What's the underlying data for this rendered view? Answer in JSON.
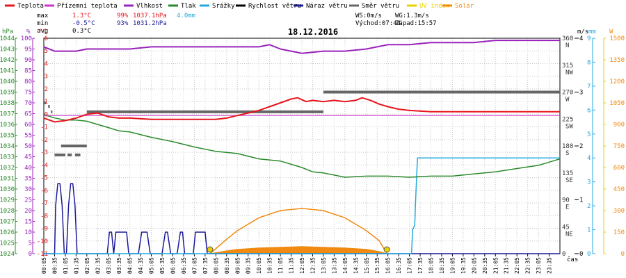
{
  "legend": [
    {
      "name": "Teplota",
      "color": "#e8141c"
    },
    {
      "name": "Přízemní teplota",
      "color": "#cc33cc"
    },
    {
      "name": "Vlhkost",
      "color": "#9922bb"
    },
    {
      "name": "Tlak",
      "color": "#2a8a2a"
    },
    {
      "name": "Srážky",
      "color": "#22aadd"
    },
    {
      "name": "Rychlost větru",
      "color": "#000000"
    },
    {
      "name": "Náraz větru",
      "color": "#1a1a99"
    },
    {
      "name": "Směr větru",
      "color": "#666666"
    },
    {
      "name": "UV index",
      "color": "#e8d000"
    },
    {
      "name": "Solar",
      "color": "#f08a10"
    }
  ],
  "stats": {
    "max": {
      "label": "max",
      "temp": "1.3°C",
      "hum": "99%",
      "press": "1037.1hPa",
      "rain": "4.0mm"
    },
    "min": {
      "label": "min",
      "temp": "-0.5°C",
      "hum": "93%",
      "press": "1031.2hPa"
    },
    "avg": {
      "label": "avg",
      "temp": "0.3°C"
    }
  },
  "wind_info": {
    "ws": "WS:0m/s",
    "wg": "WG:1.3m/s",
    "sunrise": "Východ:07:44",
    "sunset": "Západ:15:57"
  },
  "date": "18.12.2016",
  "colors": {
    "temp": "#e8141c",
    "ground": "#cc33cc",
    "hum": "#9922bb",
    "press": "#2a8a2a",
    "rain": "#22aadd",
    "gust": "#1a1a99",
    "dir": "#666666",
    "uv": "#e8d000",
    "solar": "#f08a10"
  },
  "chart_data": {
    "type": "line",
    "title": "18.12.2016",
    "xlabel": "čas",
    "x_ticks": [
      "00:05",
      "00:35",
      "01:05",
      "01:35",
      "02:05",
      "02:35",
      "03:05",
      "03:35",
      "04:05",
      "04:35",
      "05:05",
      "05:35",
      "06:05",
      "06:35",
      "07:05",
      "07:35",
      "08:05",
      "08:35",
      "09:05",
      "09:35",
      "10:05",
      "10:35",
      "11:05",
      "11:35",
      "12:05",
      "12:35",
      "13:05",
      "13:35",
      "14:05",
      "14:35",
      "15:05",
      "15:35",
      "16:05",
      "16:35",
      "17:05",
      "17:35",
      "18:05",
      "18:35",
      "19:05",
      "19:35",
      "20:05",
      "20:35",
      "21:05",
      "21:35",
      "22:05",
      "22:35",
      "23:05",
      "23:35"
    ],
    "xlim_hours": [
      0,
      24
    ],
    "axes": {
      "pressure": {
        "unit": "hPa",
        "range": [
          1024,
          1044
        ],
        "ticks": [
          1024,
          1025,
          1026,
          1027,
          1028,
          1029,
          1030,
          1031,
          1032,
          1033,
          1034,
          1035,
          1036,
          1037,
          1038,
          1039,
          1040,
          1041,
          1042,
          1043,
          1044
        ]
      },
      "humidity": {
        "unit": "%",
        "range": [
          0,
          100
        ],
        "ticks": [
          0,
          5,
          10,
          15,
          20,
          25,
          30,
          35,
          40,
          45,
          50,
          55,
          60,
          65,
          70,
          75,
          80,
          85,
          90,
          95,
          100
        ]
      },
      "temperature": {
        "unit": "°C",
        "range": [
          -11,
          6
        ],
        "ticks": [
          -11,
          -10,
          -9,
          -8,
          -7,
          -6,
          -5,
          -4,
          -3,
          -2,
          -1,
          0,
          1,
          2,
          3,
          4,
          5,
          6
        ]
      },
      "direction": {
        "unit": "",
        "range": [
          0,
          360
        ],
        "ticks": [
          {
            "v": 360,
            "l": "360",
            "d": "N"
          },
          {
            "v": 315,
            "l": "315",
            "d": "NW"
          },
          {
            "v": 270,
            "l": "270",
            "d": "W"
          },
          {
            "v": 225,
            "l": "225",
            "d": "SW"
          },
          {
            "v": 180,
            "l": "180",
            "d": "S"
          },
          {
            "v": 135,
            "l": "135",
            "d": "SE"
          },
          {
            "v": 90,
            "l": "90",
            "d": "E"
          },
          {
            "v": 45,
            "l": "45",
            "d": "NE"
          },
          {
            "v": 0,
            "l": "0",
            "d": ""
          }
        ]
      },
      "wind": {
        "unit": "m/s",
        "range": [
          0,
          4
        ],
        "ticks": [
          0,
          1,
          2,
          3,
          4
        ]
      },
      "rain": {
        "unit": "mm",
        "range": [
          0,
          9
        ],
        "ticks": [
          0,
          1,
          2,
          3,
          4,
          5,
          6,
          7,
          8,
          9
        ]
      },
      "solar": {
        "unit": "W",
        "range": [
          0,
          1500
        ],
        "ticks": [
          0,
          150,
          300,
          450,
          600,
          750,
          900,
          1050,
          1200,
          1350,
          1500
        ]
      }
    },
    "series": [
      {
        "name": "Teplota",
        "axis": "temperature",
        "x": [
          0,
          0.5,
          1,
          1.5,
          2,
          2.5,
          3,
          3.5,
          4,
          5,
          6,
          7,
          8,
          8.5,
          9,
          9.5,
          10,
          10.5,
          11,
          11.5,
          11.8,
          12.2,
          12.5,
          13,
          13.5,
          14,
          14.5,
          14.8,
          15.2,
          15.6,
          16,
          16.5,
          17,
          18,
          19,
          20,
          21,
          22,
          23,
          24
        ],
        "y": [
          -0.3,
          -0.6,
          -0.5,
          -0.3,
          0.0,
          0.1,
          -0.2,
          -0.3,
          -0.3,
          -0.4,
          -0.4,
          -0.4,
          -0.4,
          -0.3,
          -0.1,
          0.1,
          0.3,
          0.6,
          0.9,
          1.2,
          1.3,
          1.0,
          1.1,
          1.0,
          1.1,
          1.0,
          1.1,
          1.3,
          1.1,
          0.8,
          0.6,
          0.4,
          0.3,
          0.2,
          0.2,
          0.2,
          0.2,
          0.2,
          0.2,
          0.2
        ]
      },
      {
        "name": "Přízemní teplota",
        "axis": "temperature",
        "x": [
          0,
          24
        ],
        "y": [
          -0.1,
          -0.1
        ]
      },
      {
        "name": "Vlhkost",
        "axis": "humidity",
        "x": [
          0,
          0.5,
          1,
          1.5,
          2,
          2.5,
          3,
          4,
          5,
          6,
          7,
          8,
          9,
          10,
          10.5,
          11,
          11.5,
          12,
          13,
          14,
          15,
          15.5,
          16,
          17,
          18,
          19,
          20,
          21,
          22,
          23,
          24
        ],
        "y": [
          96,
          94,
          94,
          94,
          95,
          95,
          95,
          95,
          96,
          96,
          96,
          96,
          96,
          96,
          97,
          95,
          94,
          93,
          94,
          94,
          95,
          96,
          97,
          97,
          98,
          98,
          98,
          99,
          99,
          99,
          99
        ]
      },
      {
        "name": "Tlak",
        "axis": "pressure",
        "x": [
          0,
          0.5,
          1,
          1.5,
          2,
          2.5,
          3,
          3.5,
          4,
          5,
          6,
          7,
          8,
          9,
          10,
          11,
          12,
          12.5,
          13,
          13.5,
          14,
          15,
          16,
          17,
          18,
          19,
          20,
          21,
          22,
          23,
          23.5,
          24
        ],
        "y": [
          1036.9,
          1036.6,
          1036.4,
          1036.4,
          1036.3,
          1036.0,
          1035.7,
          1035.4,
          1035.3,
          1034.8,
          1034.4,
          1033.9,
          1033.5,
          1033.3,
          1032.8,
          1032.6,
          1032.0,
          1031.6,
          1031.5,
          1031.3,
          1031.1,
          1031.2,
          1031.2,
          1031.1,
          1031.2,
          1031.2,
          1031.4,
          1031.6,
          1031.9,
          1032.2,
          1032.5,
          1032.8
        ]
      },
      {
        "name": "Srážky",
        "axis": "rain",
        "x": [
          0,
          17.1,
          17.15,
          17.25,
          17.28,
          17.35,
          17.38,
          24
        ],
        "y": [
          0,
          0,
          1.0,
          1.2,
          2.0,
          3.5,
          4.0,
          4.0
        ]
      },
      {
        "name": "Náraz větru",
        "axis": "wind",
        "x": [
          0,
          0.5,
          0.55,
          0.65,
          0.75,
          0.85,
          0.95,
          1.05,
          1.15,
          1.25,
          1.35,
          1.45,
          1.55,
          1.65,
          1.75,
          1.85,
          1.95,
          2.05,
          2.5,
          2.95,
          3.05,
          3.15,
          3.25,
          3.35,
          3.5,
          3.7,
          3.85,
          3.95,
          4.4,
          4.55,
          4.65,
          4.8,
          4.95,
          5.05,
          5.5,
          5.65,
          5.75,
          5.9,
          6.2,
          6.35,
          6.45,
          6.55,
          6.95,
          7.05,
          7.15,
          7.35,
          7.5,
          7.6,
          24
        ],
        "y": [
          0,
          0,
          0.9,
          1.3,
          1.3,
          0.9,
          0,
          0,
          0.9,
          1.3,
          1.3,
          0.9,
          0,
          0,
          0,
          0,
          0,
          0,
          0,
          0,
          0.4,
          0.4,
          0,
          0.4,
          0.4,
          0.4,
          0.4,
          0,
          0,
          0.4,
          0.4,
          0.4,
          0,
          0,
          0,
          0.4,
          0.4,
          0,
          0,
          0.4,
          0.4,
          0,
          0,
          0.4,
          0.4,
          0.4,
          0.4,
          0,
          0
        ]
      },
      {
        "name": "Směr větru",
        "axis": "direction",
        "segments": [
          [
            0.0,
            0.1,
            252
          ],
          [
            0.2,
            0.28,
            246
          ],
          [
            0.33,
            0.4,
            237
          ],
          [
            0.5,
            1.0,
            165
          ],
          [
            1.1,
            1.3,
            165
          ],
          [
            1.45,
            1.7,
            165
          ],
          [
            0.8,
            2.0,
            180
          ],
          [
            2.0,
            13.0,
            237
          ],
          [
            13.0,
            24.0,
            270
          ]
        ]
      },
      {
        "name": "Solar",
        "axis": "solar",
        "x": [
          7.73,
          8.5,
          9,
          10,
          11,
          12,
          13,
          14,
          15,
          15.6,
          15.95
        ],
        "y": [
          0,
          100,
          160,
          250,
          300,
          315,
          300,
          250,
          160,
          90,
          0
        ]
      },
      {
        "name": "Solar",
        "axis": "solar",
        "x": [
          7.73,
          8.5,
          9,
          10,
          11,
          12,
          13,
          14,
          15,
          15.6,
          15.95
        ],
        "y": [
          0,
          20,
          30,
          40,
          45,
          50,
          45,
          40,
          30,
          15,
          0
        ]
      },
      {
        "name": "UV index",
        "markers": [
          7.73,
          15.95
        ]
      }
    ],
    "grid": true
  }
}
